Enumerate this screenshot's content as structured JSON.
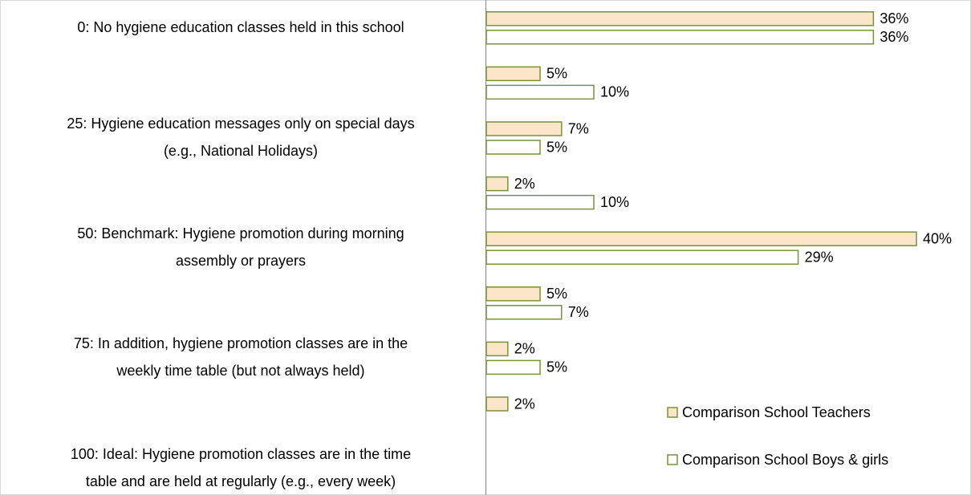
{
  "chart_data": {
    "type": "hbar",
    "categories": [
      "0: No hygiene education classes held in this school",
      null,
      "25: Hygiene education messages only on special days\n(e.g., National Holidays)",
      null,
      "50: Benchmark: Hygiene promotion during morning\nassembly or prayers",
      null,
      "75: In addition, hygiene promotion classes are in the\nweekly time table (but not always held)",
      null,
      "100: Ideal: Hygiene promotion classes are in the time\ntable and are held at regularly (e.g., every week)"
    ],
    "series": [
      {
        "name": "Comparison School Teachers",
        "color": "#fbe6c9",
        "edge": "#77933c",
        "values": [
          36,
          5,
          7,
          2,
          40,
          5,
          2,
          2,
          null
        ],
        "value_labels": [
          "36%",
          "5%",
          "7%",
          "2%",
          "40%",
          "5%",
          "2%",
          "2%",
          null
        ]
      },
      {
        "name": "Comparison School Boys & girls",
        "color": "#ffffff",
        "edge": "#77933c",
        "values": [
          36,
          10,
          5,
          10,
          29,
          7,
          5,
          null,
          null
        ],
        "value_labels": [
          "36%",
          "10%",
          "5%",
          "10%",
          "29%",
          "7%",
          "5%",
          null,
          null
        ]
      }
    ],
    "xlim": [
      0,
      45
    ],
    "legend": "lower right"
  }
}
